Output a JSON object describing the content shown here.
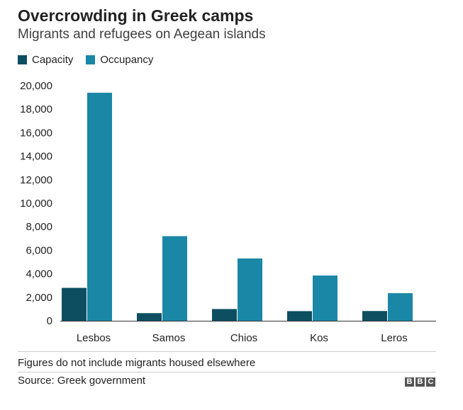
{
  "header": {
    "title": "Overcrowding in Greek camps",
    "subtitle": "Migrants and refugees on Aegean islands"
  },
  "legend": {
    "items": [
      {
        "label": "Capacity",
        "color": "#0d4f61"
      },
      {
        "label": "Occupancy",
        "color": "#1b87a6"
      }
    ]
  },
  "chart_data": {
    "type": "bar",
    "title": "Overcrowding in Greek camps",
    "subtitle": "Migrants and refugees on Aegean islands",
    "xlabel": "",
    "ylabel": "",
    "categories": [
      "Lesbos",
      "Samos",
      "Chios",
      "Kos",
      "Leros"
    ],
    "series": [
      {
        "name": "Capacity",
        "color": "#0d4f61",
        "values": [
          2800,
          650,
          1000,
          820,
          830
        ]
      },
      {
        "name": "Occupancy",
        "color": "#1b87a6",
        "values": [
          19400,
          7200,
          5300,
          3850,
          2350
        ]
      }
    ],
    "ylim": [
      0,
      20000
    ],
    "yticks": [
      0,
      2000,
      4000,
      6000,
      8000,
      10000,
      12000,
      14000,
      16000,
      18000,
      20000
    ],
    "ytick_labels": [
      "0",
      "2,000",
      "4,000",
      "6,000",
      "8,000",
      "10,000",
      "12,000",
      "14,000",
      "16,000",
      "18,000",
      "20,000"
    ],
    "grid": false,
    "legend_position": "top-left"
  },
  "footer": {
    "note": "Figures do not include migrants housed elsewhere",
    "source": "Source: Greek government",
    "logo_letters": [
      "B",
      "B",
      "C"
    ]
  }
}
